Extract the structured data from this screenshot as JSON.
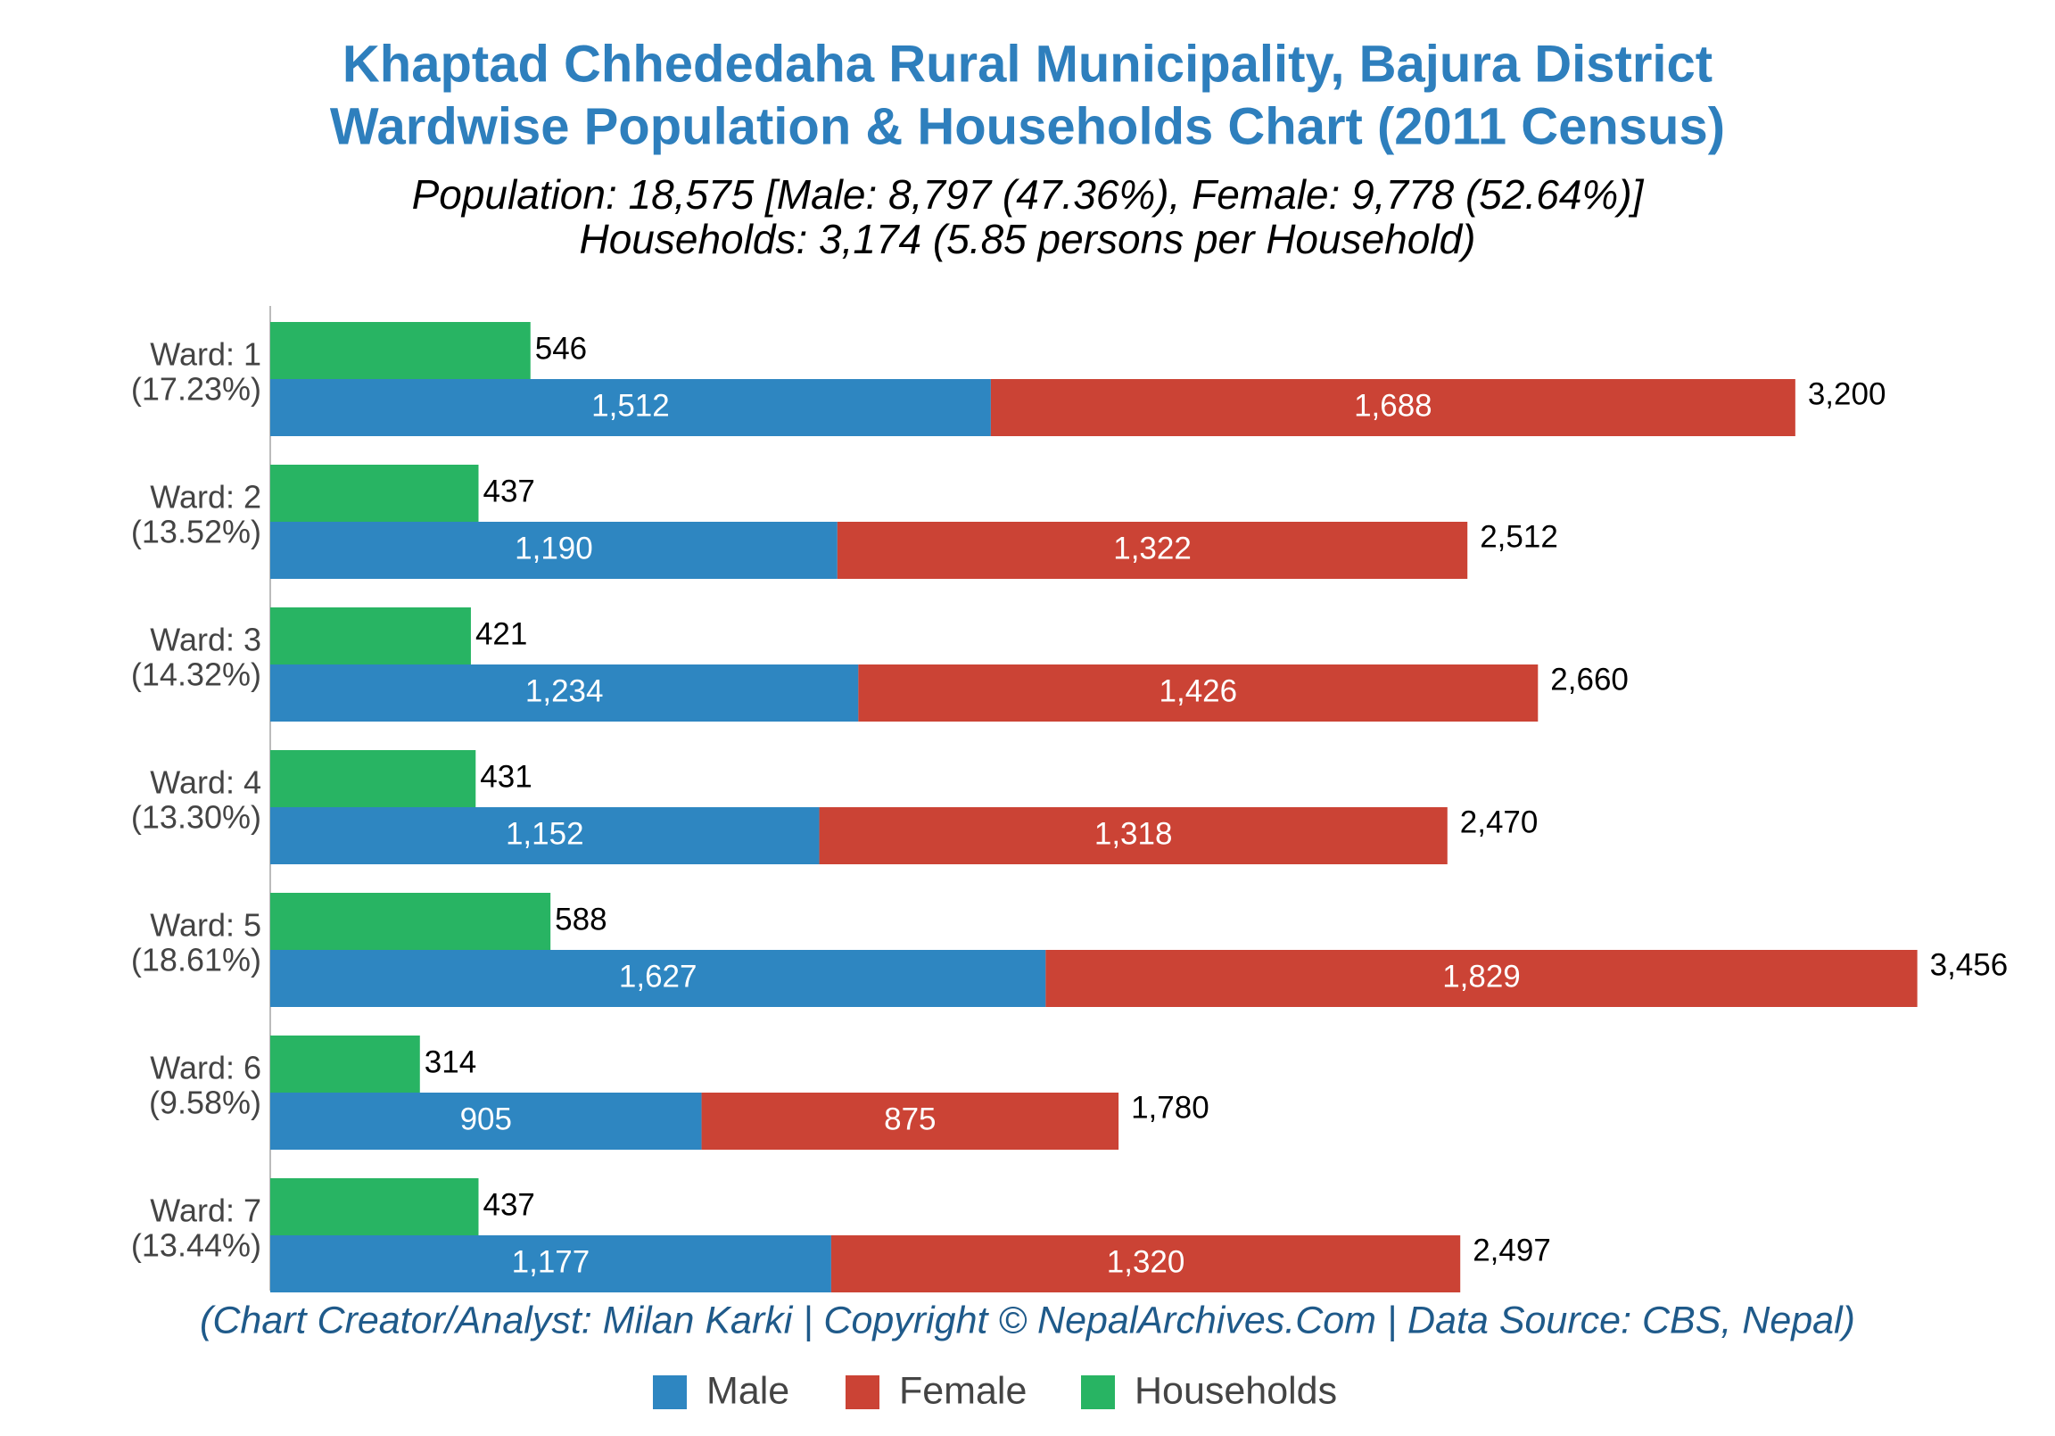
{
  "chart_data": {
    "type": "bar",
    "orientation": "horizontal",
    "title": [
      "Khaptad Chhededaha Rural Municipality, Bajura District",
      "Wardwise Population & Households Chart (2011 Census)"
    ],
    "subtitle": [
      "Population: 18,575 [Male: 8,797 (47.36%), Female: 9,778 (52.64%)]",
      "Households: 3,174 (5.85 persons per Household)"
    ],
    "annotation": "(Chart Creator/Analyst: Milan Karki | Copyright © NepalArchives.Com | Data Source: CBS, Nepal)",
    "categories": [
      [
        "Ward: 1",
        "(17.23%)"
      ],
      [
        "Ward: 2",
        "(13.52%)"
      ],
      [
        "Ward: 3",
        "(14.32%)"
      ],
      [
        "Ward: 4",
        "(13.30%)"
      ],
      [
        "Ward: 5",
        "(18.61%)"
      ],
      [
        "Ward: 6",
        "(9.58%)"
      ],
      [
        "Ward: 7",
        "(13.44%)"
      ]
    ],
    "series": [
      {
        "name": "Male",
        "color": "#2e86c1",
        "stack": "population",
        "values": [
          1512,
          1190,
          1234,
          1152,
          1627,
          905,
          1177
        ],
        "value_labels": [
          "1,512",
          "1,190",
          "1,234",
          "1,152",
          "1,627",
          "905",
          "1,177"
        ]
      },
      {
        "name": "Female",
        "color": "#cb4335",
        "stack": "population",
        "values": [
          1688,
          1322,
          1426,
          1318,
          1829,
          875,
          1320
        ],
        "value_labels": [
          "1,688",
          "1,322",
          "1,426",
          "1,318",
          "1,829",
          "875",
          "1,320"
        ]
      },
      {
        "name": "Households",
        "color": "#28b463",
        "stack": "households",
        "values": [
          546,
          437,
          421,
          431,
          588,
          314,
          437
        ]
      }
    ],
    "totals": [
      3200,
      2512,
      2660,
      2470,
      3456,
      1780,
      2497
    ],
    "total_labels": [
      "3,200",
      "2,512",
      "2,660",
      "2,470",
      "3,456",
      "1,780",
      "2,497"
    ],
    "xlim": [
      0,
      3700
    ],
    "legend": "bottom"
  }
}
